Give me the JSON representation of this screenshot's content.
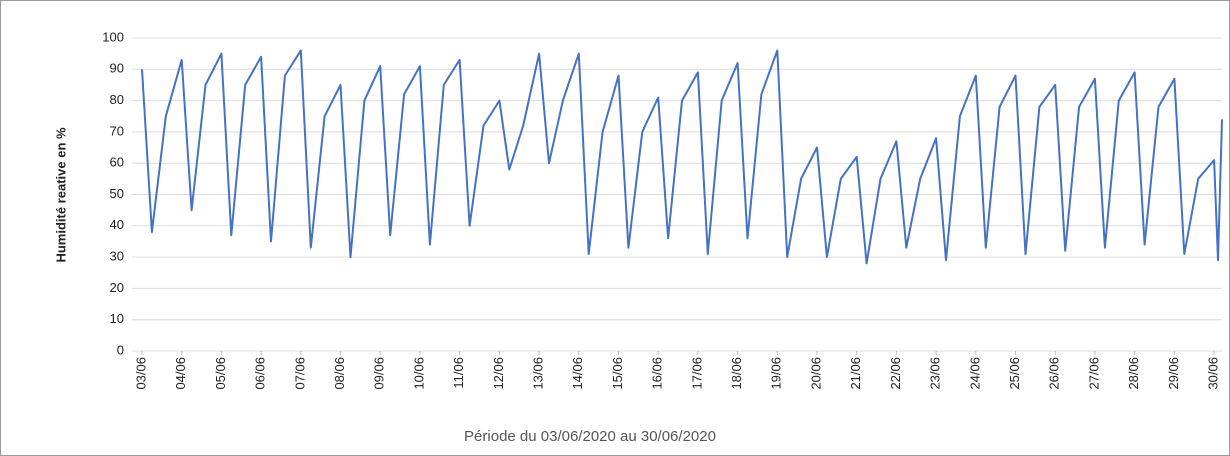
{
  "chart_data": {
    "type": "line",
    "y_label": "Humidité reative en %",
    "x_label": "Période du 03/06/2020 au 30/06/2020",
    "ylim": [
      0,
      100
    ],
    "yticks": [
      0,
      10,
      20,
      30,
      40,
      50,
      60,
      70,
      80,
      90,
      100
    ],
    "grid": true,
    "xlim": [
      0,
      27.2
    ],
    "xticks": [
      {
        "value": 0,
        "label": "03/06"
      },
      {
        "value": 1,
        "label": "04/06"
      },
      {
        "value": 2,
        "label": "05/06"
      },
      {
        "value": 3,
        "label": "06/06"
      },
      {
        "value": 4,
        "label": "07/06"
      },
      {
        "value": 5,
        "label": "08/06"
      },
      {
        "value": 6,
        "label": "09/06"
      },
      {
        "value": 7,
        "label": "10/06"
      },
      {
        "value": 8,
        "label": "11/06"
      },
      {
        "value": 9,
        "label": "12/06"
      },
      {
        "value": 10,
        "label": "13/06"
      },
      {
        "value": 11,
        "label": "14/06"
      },
      {
        "value": 12,
        "label": "15/06"
      },
      {
        "value": 13,
        "label": "16/06"
      },
      {
        "value": 14,
        "label": "17/06"
      },
      {
        "value": 15,
        "label": "18/06"
      },
      {
        "value": 16,
        "label": "19/06"
      },
      {
        "value": 17,
        "label": "20/06"
      },
      {
        "value": 18,
        "label": "21/06"
      },
      {
        "value": 19,
        "label": "22/06"
      },
      {
        "value": 20,
        "label": "23/06"
      },
      {
        "value": 21,
        "label": "24/06"
      },
      {
        "value": 22,
        "label": "25/06"
      },
      {
        "value": 23,
        "label": "26/06"
      },
      {
        "value": 24,
        "label": "27/06"
      },
      {
        "value": 25,
        "label": "28/06"
      },
      {
        "value": 26,
        "label": "29/06"
      },
      {
        "value": 27,
        "label": "30/06"
      }
    ],
    "x": [
      0,
      0.25,
      0.6,
      1,
      1.25,
      1.6,
      2,
      2.25,
      2.6,
      3,
      3.25,
      3.6,
      4,
      4.25,
      4.6,
      5,
      5.25,
      5.6,
      6,
      6.25,
      6.6,
      7,
      7.25,
      7.6,
      8,
      8.25,
      8.6,
      9,
      9.25,
      9.6,
      10,
      10.25,
      10.6,
      11,
      11.25,
      11.6,
      12,
      12.25,
      12.6,
      13,
      13.25,
      13.6,
      14,
      14.25,
      14.6,
      15,
      15.25,
      15.6,
      16,
      16.25,
      16.6,
      17,
      17.25,
      17.6,
      18,
      18.25,
      18.6,
      19,
      19.25,
      19.6,
      20,
      20.25,
      20.6,
      21,
      21.25,
      21.6,
      22,
      22.25,
      22.6,
      23,
      23.25,
      23.6,
      24,
      24.25,
      24.6,
      25,
      25.25,
      25.6,
      26,
      26.25,
      26.6,
      27,
      27.1,
      27.2
    ],
    "series": [
      {
        "color": "#4472c4",
        "values": [
          90,
          38,
          75,
          93,
          45,
          85,
          95,
          37,
          85,
          94,
          35,
          88,
          96,
          33,
          75,
          85,
          30,
          80,
          91,
          37,
          82,
          91,
          34,
          85,
          93,
          40,
          72,
          80,
          58,
          72,
          95,
          60,
          80,
          95,
          31,
          70,
          88,
          33,
          70,
          81,
          36,
          80,
          89,
          31,
          80,
          92,
          36,
          82,
          96,
          30,
          55,
          65,
          30,
          55,
          62,
          28,
          55,
          67,
          33,
          55,
          68,
          29,
          75,
          88,
          33,
          78,
          88,
          31,
          78,
          85,
          32,
          78,
          87,
          33,
          80,
          89,
          34,
          78,
          87,
          31,
          55,
          61,
          29,
          74
        ]
      }
    ]
  }
}
